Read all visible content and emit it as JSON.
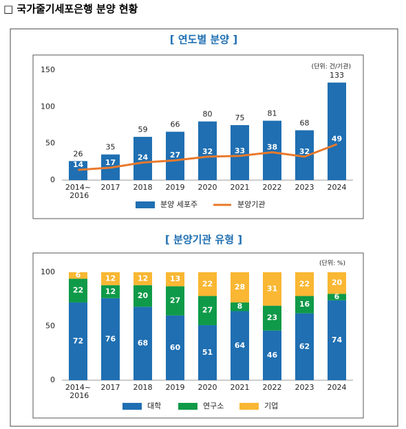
{
  "header": {
    "title": "□ 국가줄기세포은행 분양 현황"
  },
  "chart_data": [
    {
      "type": "combo",
      "title": "[ 연도별 분양 ]",
      "unit": "(단위: 건/기관)",
      "categories": [
        "2014~\n2016",
        "2017",
        "2018",
        "2019",
        "2020",
        "2021",
        "2022",
        "2023",
        "2024"
      ],
      "series": [
        {
          "name": "분양 세포주",
          "kind": "bar",
          "color": "#1f6fb2",
          "values": [
            26,
            35,
            59,
            66,
            80,
            75,
            81,
            68,
            133
          ]
        },
        {
          "name": "분양기관",
          "kind": "line",
          "color": "#e8792b",
          "values": [
            14,
            17,
            24,
            27,
            32,
            33,
            38,
            32,
            49
          ]
        }
      ],
      "ylim": [
        0,
        150
      ],
      "yticks": [
        0,
        50,
        100,
        150
      ]
    },
    {
      "type": "stacked",
      "title": "[ 분양기관 유형 ]",
      "unit": "(단위: %)",
      "categories": [
        "2014~\n2016",
        "2017",
        "2018",
        "2019",
        "2020",
        "2021",
        "2022",
        "2023",
        "2024"
      ],
      "series": [
        {
          "name": "대학",
          "color": "#1f6fb2",
          "values": [
            72,
            76,
            68,
            60,
            51,
            64,
            46,
            62,
            74
          ]
        },
        {
          "name": "연구소",
          "color": "#0e9a48",
          "values": [
            22,
            12,
            20,
            27,
            27,
            8,
            23,
            16,
            6
          ]
        },
        {
          "name": "기업",
          "color": "#f9b733",
          "values": [
            6,
            12,
            12,
            13,
            22,
            28,
            31,
            22,
            20
          ]
        }
      ],
      "ylim": [
        0,
        100
      ],
      "yticks": [
        0,
        50,
        100
      ]
    }
  ]
}
